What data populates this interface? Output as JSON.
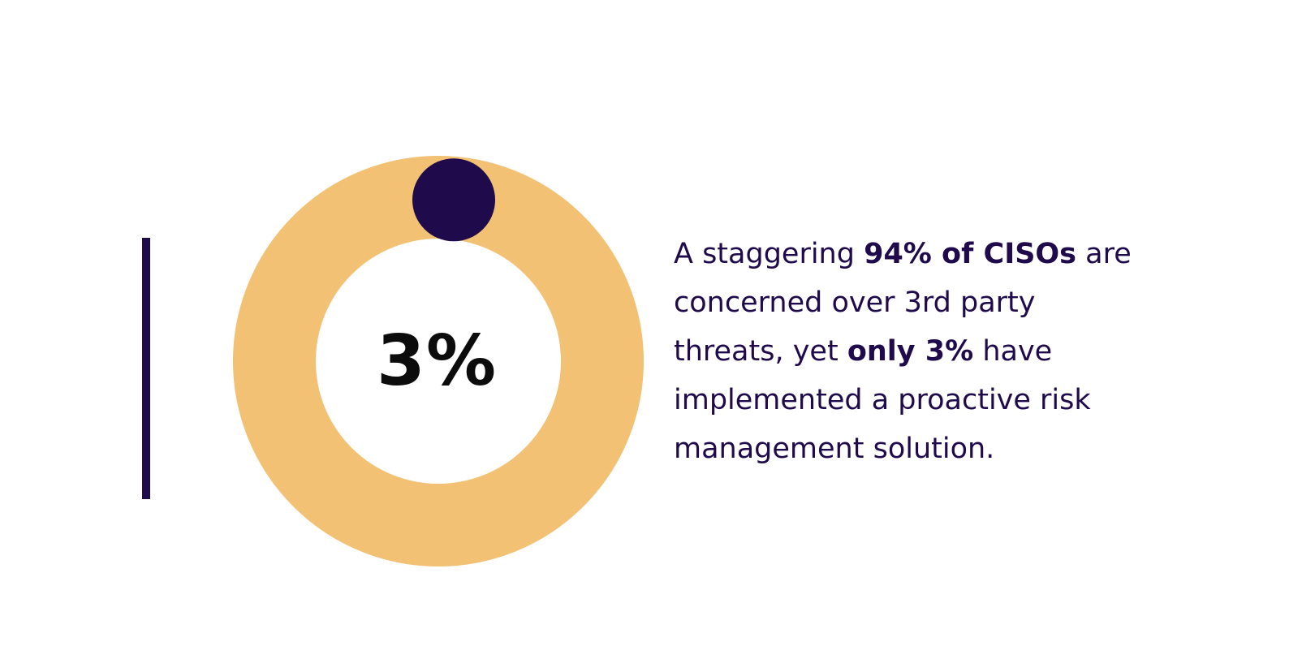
{
  "colors": {
    "track": "#f2c173",
    "marker": "#1f0a4b",
    "text": "#1f0a4b",
    "accent_bar": "#1f0a4b",
    "background": "#ffffff"
  },
  "chart_data": {
    "type": "pie",
    "variant": "donut",
    "center_label": "3%",
    "values": [
      3,
      97
    ],
    "slice_colors": [
      "#1f0a4b",
      "#f2c173"
    ]
  },
  "statement": {
    "line1_a": "A staggering ",
    "line1_bold": "94% of CISOs",
    "line1_b": " are",
    "line2": "concerned over 3rd party",
    "line3_a": "threats, yet ",
    "line3_bold": "only 3%",
    "line3_b": " have",
    "line4": "implemented a proactive risk",
    "line5": "management solution."
  }
}
